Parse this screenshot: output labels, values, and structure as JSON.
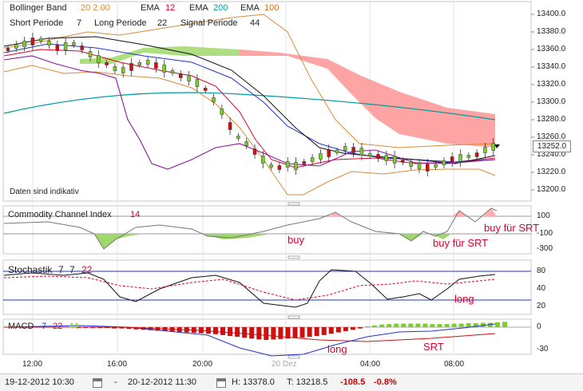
{
  "main_panel": {
    "legend": {
      "bollinger_label": "Bollinger Band",
      "bollinger_params": "20  2.00",
      "ema1_label": "EMA",
      "ema1_value": "12",
      "ema2_label": "EMA",
      "ema2_value": "200",
      "ema3_label": "EMA",
      "ema3_value": "100",
      "short_label": "Short Periode",
      "short_value": "7",
      "long_label": "Long Periode",
      "long_value": "22",
      "signal_label": "Signal Periode",
      "signal_value": "44"
    },
    "disclaimer": "Daten sind indikativ",
    "price_ticks": [
      "13400.0",
      "13380.0",
      "13360.0",
      "13340.0",
      "13320.0",
      "13300.0",
      "13280.0",
      "13260.0",
      "13240.0",
      "13220.0",
      "13200.0"
    ],
    "last_price": "13252.0"
  },
  "cci_panel": {
    "title": "Commodity Channel Index",
    "param": "14",
    "ticks": [
      "100",
      "-100",
      "-300"
    ],
    "annotations": [
      "buy",
      "buy für SRT",
      "buy für SRT"
    ]
  },
  "stoch_panel": {
    "title": "Stochastik",
    "p1": "7",
    "p2": "7",
    "p3": "22",
    "ticks": [
      "80",
      "40",
      "20"
    ],
    "annotations": [
      "long"
    ]
  },
  "macd_panel": {
    "title": "MACD",
    "p1": "7",
    "p2": "22",
    "p3": "44",
    "ticks": [
      "0",
      "-30"
    ],
    "annotations": [
      "long",
      "SRT"
    ]
  },
  "time_axis": [
    "12:00",
    "16:00",
    "20:00",
    "20 Dez",
    "04:00",
    "08:00"
  ],
  "status_bar": {
    "from": "19-12-2012 10:30",
    "separator": "-",
    "to": "20-12-2012 11:30",
    "high": "H: 13378.0",
    "low": "T: 13218.5",
    "change": "-108.5",
    "change_pct": "-0.8%"
  },
  "colors": {
    "ema12": "#e0002a",
    "ema200": "#009c9c",
    "ema100": "#d2691e",
    "bollinger": "#d98b3a",
    "cloud_bear": "#ff9a9a",
    "cloud_bull": "#9fd86a",
    "price_line": "#111111",
    "purple": "#8b1a9b",
    "blue": "#2233cc",
    "negative": "#cc0000",
    "positive_bar": "#7ccc2c",
    "negative_bar": "#cc1111"
  }
}
